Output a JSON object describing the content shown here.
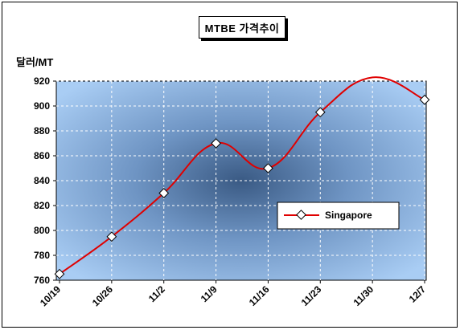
{
  "chart_data": {
    "type": "line",
    "title": "MTBE 가격추이",
    "ylabel": "달러/MT",
    "xlabel": "",
    "categories": [
      "10/19",
      "10/26",
      "11/2",
      "11/9",
      "11/16",
      "11/23",
      "11/30",
      "12/7"
    ],
    "series": [
      {
        "name": "Singapore",
        "values": [
          765,
          795,
          830,
          870,
          850,
          895,
          923,
          905
        ],
        "color": "#e00000"
      }
    ],
    "ylim": [
      760,
      920
    ],
    "yticks": [
      760,
      780,
      800,
      820,
      840,
      860,
      880,
      900,
      920
    ],
    "grid": true,
    "legend_position": "right",
    "background": "radial gradient blue"
  }
}
